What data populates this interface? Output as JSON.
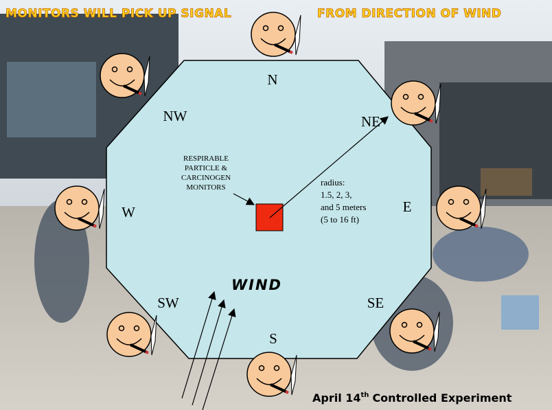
{
  "banner": {
    "left": "MONITORS WILL PICK UP SIGNAL",
    "right": "FROM DIRECTION OF WIND"
  },
  "directions": {
    "n": "N",
    "ne": "NE",
    "e": "E",
    "se": "SE",
    "s": "S",
    "sw": "SW",
    "w": "W",
    "nw": "NW"
  },
  "monitor_label": [
    "RESPIRABLE",
    "PARTICLE &",
    "CARCINOGEN",
    "MONITORS"
  ],
  "radius_label": [
    "radius:",
    "1.5, 2, 3,",
    "and 5 meters",
    "(5 to 16 ft)"
  ],
  "wind_label": "WIND",
  "footer": {
    "date": "April 14",
    "ordinal": "th",
    "rest": "Controlled Experiment"
  }
}
